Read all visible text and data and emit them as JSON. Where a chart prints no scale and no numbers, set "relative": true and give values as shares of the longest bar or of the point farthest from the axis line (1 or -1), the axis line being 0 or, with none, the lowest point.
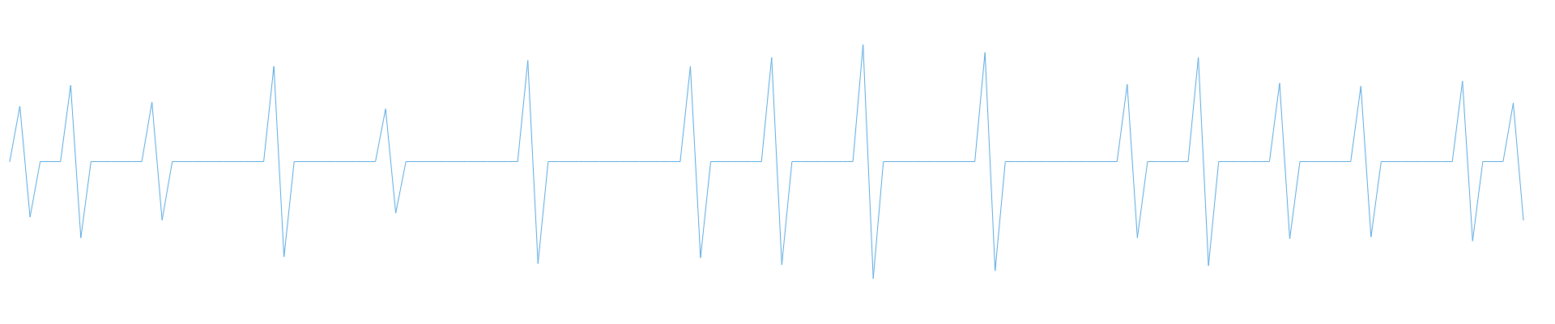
{
  "chart_data": {
    "type": "line",
    "relative": true,
    "color": "#56a8e0",
    "categories": [
      null,
      null,
      null,
      null,
      null,
      null,
      null,
      null,
      null,
      null,
      null,
      null,
      null,
      null,
      null,
      null,
      null,
      null,
      null,
      null,
      null,
      null,
      null,
      null,
      null,
      null,
      null,
      null,
      null,
      null,
      null,
      null,
      null,
      null,
      null,
      null,
      null,
      null,
      null,
      null,
      null,
      null,
      null,
      null,
      null,
      null,
      null,
      null,
      null,
      null,
      null,
      null,
      null,
      null,
      null,
      null,
      null,
      null,
      null,
      null,
      null,
      null,
      null,
      null,
      null,
      null,
      null,
      null,
      null,
      null,
      null,
      null,
      null,
      null,
      null,
      null,
      null,
      null,
      null,
      null,
      null,
      null,
      null,
      null,
      null,
      null,
      null,
      null,
      null,
      null,
      null,
      null,
      null,
      null,
      null,
      null,
      null,
      null,
      null,
      null,
      null,
      null,
      null,
      null,
      null,
      null,
      null,
      null,
      null,
      null,
      null,
      null,
      null,
      null,
      null,
      null,
      null,
      null,
      null,
      null,
      null,
      null,
      null,
      null,
      null,
      null,
      null,
      null,
      null,
      null,
      null,
      null,
      null,
      null,
      null,
      null,
      null,
      null,
      null,
      null,
      null,
      null,
      null,
      null,
      null,
      null,
      null,
      null,
      null,
      null
    ],
    "values": [
      0.5,
      0.737,
      0.263,
      0.5,
      0.5,
      0.5,
      0.826,
      0.174,
      0.5,
      0.5,
      0.5,
      0.5,
      0.5,
      0.5,
      0.754,
      0.25,
      0.5,
      0.5,
      0.5,
      0.5,
      0.5,
      0.5,
      0.5,
      0.5,
      0.5,
      0.5,
      0.907,
      0.093,
      0.5,
      0.5,
      0.5,
      0.5,
      0.5,
      0.5,
      0.5,
      0.5,
      0.5,
      0.725,
      0.28,
      0.5,
      0.5,
      0.5,
      0.5,
      0.5,
      0.5,
      0.5,
      0.5,
      0.5,
      0.5,
      0.5,
      0.5,
      0.932,
      0.064,
      0.5,
      0.5,
      0.5,
      0.5,
      0.5,
      0.5,
      0.5,
      0.5,
      0.5,
      0.5,
      0.5,
      0.5,
      0.5,
      0.5,
      0.907,
      0.089,
      0.5,
      0.5,
      0.5,
      0.5,
      0.5,
      0.5,
      0.945,
      0.059,
      0.5,
      0.5,
      0.5,
      0.5,
      0.5,
      0.5,
      0.5,
      1,
      0,
      0.5,
      0.5,
      0.5,
      0.5,
      0.5,
      0.5,
      0.5,
      0.5,
      0.5,
      0.5,
      0.966,
      0.034,
      0.5,
      0.5,
      0.5,
      0.5,
      0.5,
      0.5,
      0.5,
      0.5,
      0.5,
      0.5,
      0.5,
      0.5,
      0.83,
      0.174,
      0.5,
      0.5,
      0.5,
      0.5,
      0.5,
      0.945,
      0.055,
      0.5,
      0.5,
      0.5,
      0.5,
      0.5,
      0.5,
      0.835,
      0.17,
      0.5,
      0.5,
      0.5,
      0.5,
      0.5,
      0.5,
      0.822,
      0.178,
      0.5,
      0.5,
      0.5,
      0.5,
      0.5,
      0.5,
      0.5,
      0.5,
      0.843,
      0.161,
      0.5,
      0.5,
      0.5,
      0.75,
      0.25
    ]
  }
}
